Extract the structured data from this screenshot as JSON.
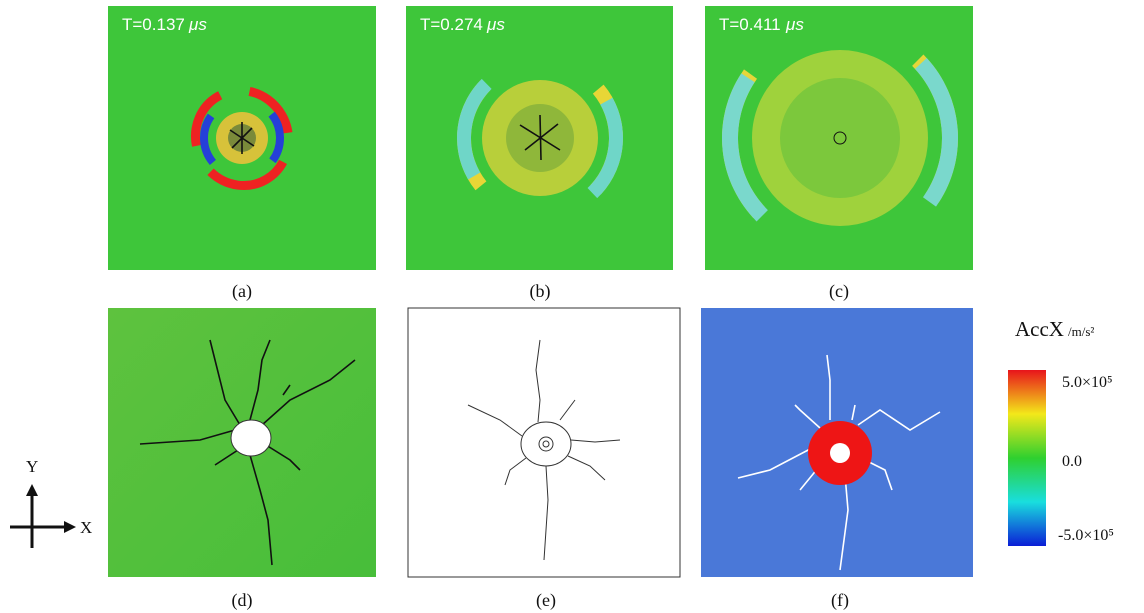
{
  "panels": [
    {
      "label": "(a)",
      "time": "T=0.137",
      "unit": "μs"
    },
    {
      "label": "(b)",
      "time": "T=0.274",
      "unit": "μs"
    },
    {
      "label": "(c)",
      "time": "T=0.411",
      "unit": "μs"
    },
    {
      "label": "(d)"
    },
    {
      "label": "(e)"
    },
    {
      "label": "(f)"
    }
  ],
  "colorbar": {
    "title": "AccX",
    "unit": "/m/s²",
    "labels": [
      "5.0×10⁵",
      "0.0",
      "-5.0×10⁵"
    ]
  },
  "axes": {
    "y": "Y",
    "x": "X"
  }
}
